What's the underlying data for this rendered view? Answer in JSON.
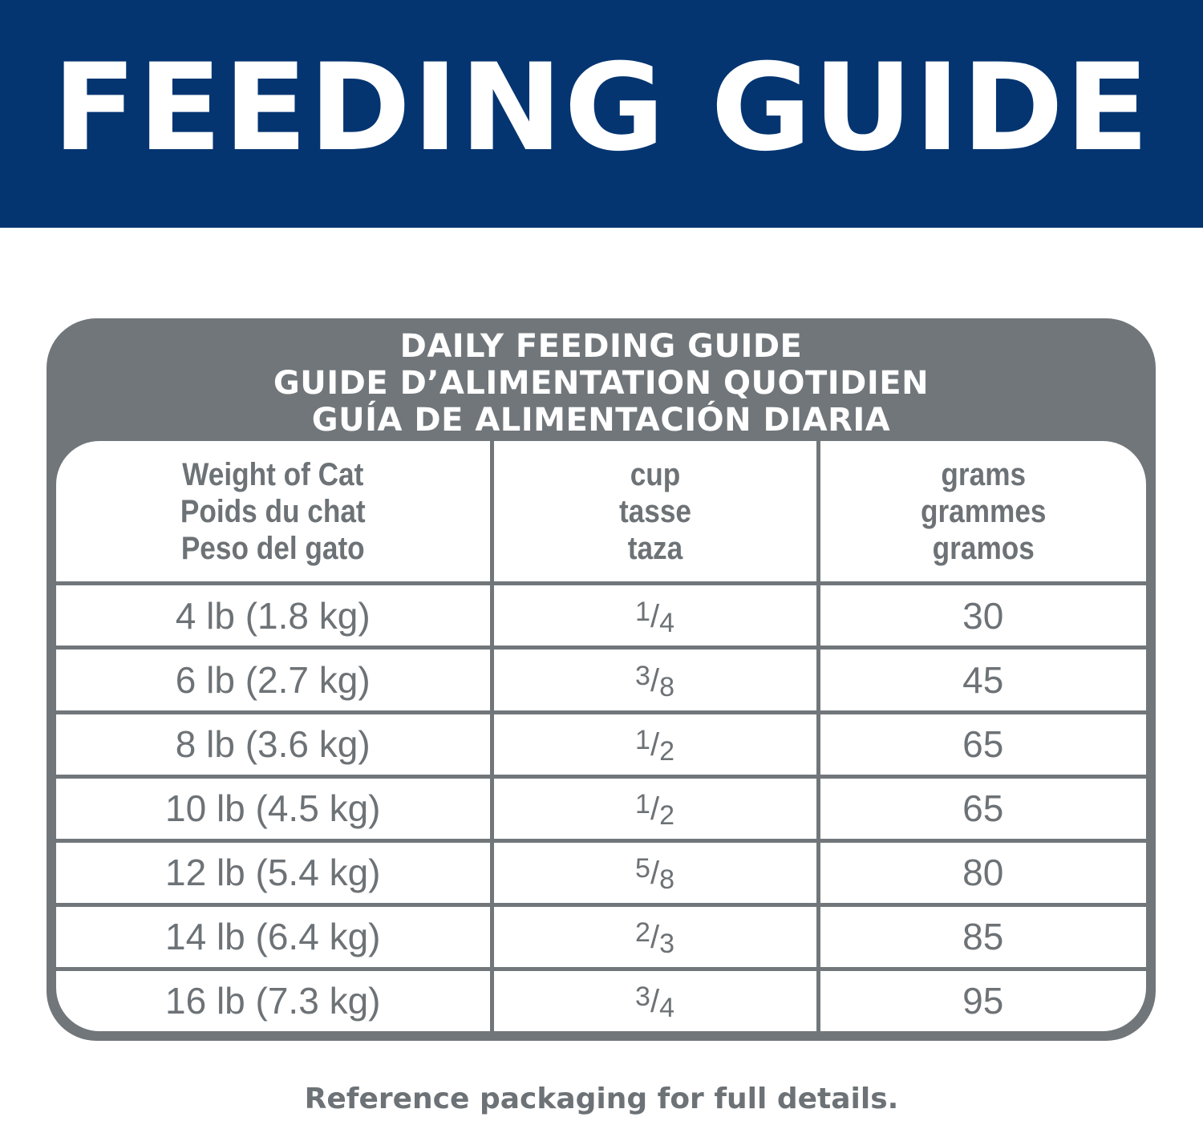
{
  "banner": {
    "title": "FEEDING GUIDE",
    "color": "#043571"
  },
  "card": {
    "color": "#71767a",
    "heading": [
      "DAILY FEEDING GUIDE",
      "GUIDE D’ALIMENTATION QUOTIDIEN",
      "GUÍA DE ALIMENTACIÓN DIARIA"
    ]
  },
  "table": {
    "headers": [
      {
        "lines": [
          "Weight of Cat",
          "Poids du chat",
          "Peso del gato"
        ]
      },
      {
        "lines": [
          "cup",
          "tasse",
          "taza"
        ]
      },
      {
        "lines": [
          "grams",
          "grammes",
          "gramos"
        ]
      }
    ],
    "rows": [
      {
        "weight": "4 lb (1.8 kg)",
        "cup_num": "1",
        "cup_den": "4",
        "grams": "30"
      },
      {
        "weight": "6 lb (2.7 kg)",
        "cup_num": "3",
        "cup_den": "8",
        "grams": "45"
      },
      {
        "weight": "8 lb (3.6 kg)",
        "cup_num": "1",
        "cup_den": "2",
        "grams": "65"
      },
      {
        "weight": "10 lb (4.5 kg)",
        "cup_num": "1",
        "cup_den": "2",
        "grams": "65"
      },
      {
        "weight": "12 lb (5.4 kg)",
        "cup_num": "5",
        "cup_den": "8",
        "grams": "80"
      },
      {
        "weight": "14 lb (6.4 kg)",
        "cup_num": "2",
        "cup_den": "3",
        "grams": "85"
      },
      {
        "weight": "16 lb (7.3 kg)",
        "cup_num": "3",
        "cup_den": "4",
        "grams": "95"
      }
    ]
  },
  "footer": {
    "text": "Reference packaging for full details."
  }
}
